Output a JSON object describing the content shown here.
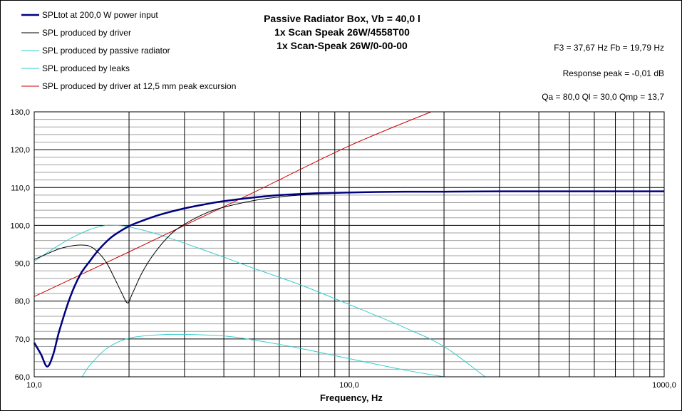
{
  "chart_data": {
    "type": "line",
    "title_lines": [
      "Passive Radiator Box, Vb = 40,0 l",
      "1x Scan Speak  26W/4558T00",
      "1x Scan-Speak 26W/0-00-00"
    ],
    "info_lines": [
      "F3 = 37,67 Hz  Fb = 19,79 Hz",
      "Response  peak = -0,01 dB",
      "Qa = 80,0  Ql = 30,0  Qmp = 13,7"
    ],
    "xlabel": "Frequency, Hz",
    "ylabel": "",
    "x_scale": "log",
    "xlim": [
      10,
      1000
    ],
    "ylim": [
      60,
      130
    ],
    "x_tick_labels": [
      {
        "value": 10,
        "label": "10,0"
      },
      {
        "value": 100,
        "label": "100,0"
      },
      {
        "value": 1000,
        "label": "1000,0"
      }
    ],
    "y_tick_labels": [
      {
        "value": 60,
        "label": "60,0"
      },
      {
        "value": 70,
        "label": "70,0"
      },
      {
        "value": 80,
        "label": "80,0"
      },
      {
        "value": 90,
        "label": "90,0"
      },
      {
        "value": 100,
        "label": "100,0"
      },
      {
        "value": 110,
        "label": "110,0"
      },
      {
        "value": 120,
        "label": "120,0"
      },
      {
        "value": 130,
        "label": "130,0"
      }
    ],
    "grid": true,
    "legend_position": "top-left",
    "series": [
      {
        "name": "SPLtot at 200,0 W power input",
        "color": "#000080",
        "width": "thick",
        "x": [
          10,
          10.5,
          11,
          11.5,
          12,
          13,
          14,
          15,
          16,
          17,
          18,
          20,
          22,
          25,
          30,
          35,
          40,
          50,
          60,
          70,
          80,
          100,
          150,
          200,
          300,
          500,
          700,
          1000
        ],
        "y": [
          69,
          66,
          62.7,
          66,
          72,
          81,
          87,
          90.5,
          93.5,
          95.8,
          97.5,
          99.8,
          101.2,
          102.8,
          104.5,
          105.6,
          106.4,
          107.4,
          108,
          108.3,
          108.5,
          108.7,
          108.9,
          108.9,
          109,
          109,
          109,
          109
        ]
      },
      {
        "name": "SPL produced by driver",
        "color": "#000000",
        "width": "thin",
        "x": [
          10,
          11,
          12,
          13,
          14,
          15,
          16,
          17,
          18,
          19,
          19.8,
          20.5,
          22,
          24,
          27,
          30,
          35,
          40,
          50,
          60,
          70,
          80,
          100,
          150,
          200,
          300,
          500,
          1000
        ],
        "y": [
          91,
          92.5,
          93.8,
          94.5,
          94.8,
          94.5,
          92.8,
          90,
          86,
          82,
          79.5,
          82,
          87.5,
          92.5,
          97.5,
          100.3,
          103.2,
          104.8,
          106.6,
          107.5,
          108,
          108.3,
          108.6,
          108.9,
          109,
          109,
          109,
          109
        ]
      },
      {
        "name": "SPL produced by passive radiator",
        "color": "#33CCCC",
        "width": "thin",
        "x": [
          10,
          11,
          12,
          13,
          14,
          15,
          16,
          17,
          18,
          19,
          20,
          22,
          25,
          30,
          40,
          50,
          70,
          100,
          150,
          200,
          270
        ],
        "y": [
          90.5,
          92.8,
          94.8,
          96.5,
          97.8,
          98.9,
          99.6,
          100,
          100,
          99.9,
          99.6,
          98.8,
          97.5,
          95.3,
          91.6,
          88.6,
          84.3,
          79.1,
          73,
          68,
          60
        ]
      },
      {
        "name": "SPL produced by leaks",
        "color": "#33CCCC",
        "width": "thin",
        "x": [
          14.2,
          15,
          17,
          20,
          25,
          30,
          40,
          50,
          70,
          100,
          150,
          200
        ],
        "y": [
          60,
          63,
          67.5,
          70.2,
          71.1,
          71.2,
          70.8,
          69.7,
          67.5,
          64.8,
          61.8,
          60
        ]
      },
      {
        "name": "SPL produced by driver at 12,5 mm peak excursion",
        "color": "#CC0000",
        "width": "thin",
        "x": [
          10,
          20,
          30,
          50,
          100,
          182
        ],
        "y": [
          81.2,
          93,
          100,
          108.8,
          121,
          130
        ]
      }
    ]
  }
}
